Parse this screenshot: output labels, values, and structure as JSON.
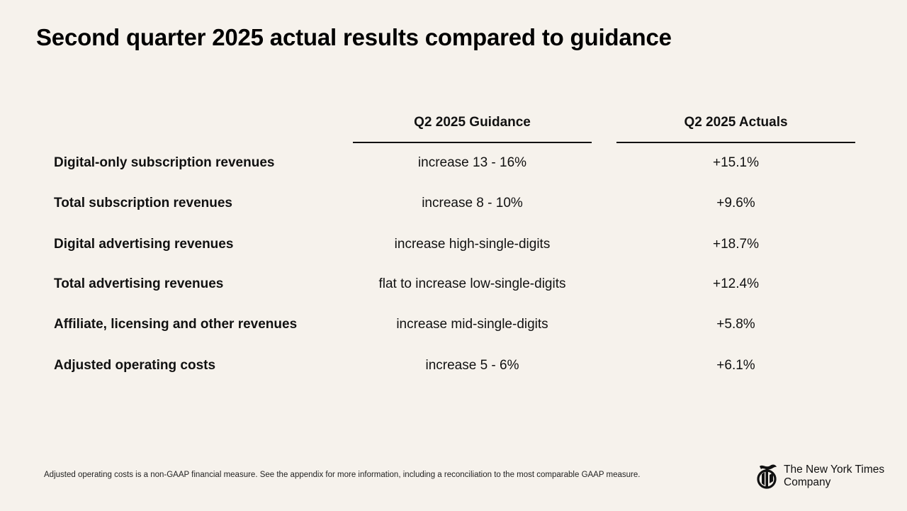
{
  "title": "Second quarter 2025 actual results compared to guidance",
  "table": {
    "headers": {
      "guidance": "Q2 2025 Guidance",
      "actuals": "Q2 2025 Actuals"
    },
    "rows": [
      {
        "label": "Digital-only subscription revenues",
        "guidance": "increase 13 - 16%",
        "actual": "+15.1%"
      },
      {
        "label": "Total subscription revenues",
        "guidance": "increase 8 - 10%",
        "actual": "+9.6%"
      },
      {
        "label": "Digital advertising revenues",
        "guidance": "increase high-single-digits",
        "actual": "+18.7%"
      },
      {
        "label": "Total advertising revenues",
        "guidance": "flat to increase low-single-digits",
        "actual": "+12.4%"
      },
      {
        "label": "Affiliate, licensing and other revenues",
        "guidance": "increase mid-single-digits",
        "actual": "+5.8%"
      },
      {
        "label": "Adjusted operating costs",
        "guidance": "increase 5 - 6%",
        "actual": "+6.1%"
      }
    ]
  },
  "footnote": "Adjusted operating costs is a non-GAAP financial measure. See the appendix for more information, including a reconciliation to the most comparable GAAP measure.",
  "logo": {
    "line1": "The New York Times",
    "line2": "Company",
    "icon": "nyt-t-logo-icon"
  },
  "colors": {
    "background": "#f6f2ec",
    "text": "#111111"
  }
}
